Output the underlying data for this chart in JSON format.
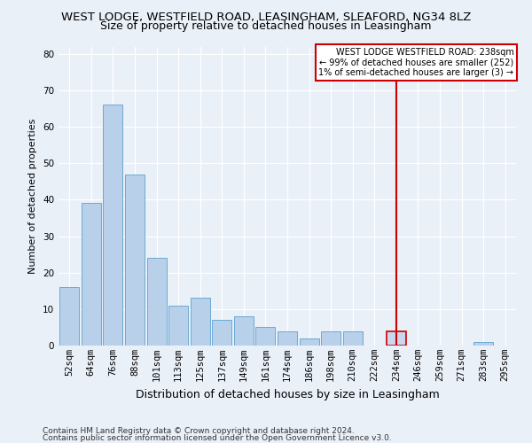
{
  "title": "WEST LODGE, WESTFIELD ROAD, LEASINGHAM, SLEAFORD, NG34 8LZ",
  "subtitle": "Size of property relative to detached houses in Leasingham",
  "xlabel": "Distribution of detached houses by size in Leasingham",
  "ylabel": "Number of detached properties",
  "categories": [
    "52sqm",
    "64sqm",
    "76sqm",
    "88sqm",
    "101sqm",
    "113sqm",
    "125sqm",
    "137sqm",
    "149sqm",
    "161sqm",
    "174sqm",
    "186sqm",
    "198sqm",
    "210sqm",
    "222sqm",
    "234sqm",
    "246sqm",
    "259sqm",
    "271sqm",
    "283sqm",
    "295sqm"
  ],
  "values": [
    16,
    39,
    66,
    47,
    24,
    11,
    13,
    7,
    8,
    5,
    4,
    2,
    4,
    4,
    0,
    4,
    0,
    0,
    0,
    1,
    0
  ],
  "bar_color": "#b8d0ea",
  "bar_edge_color": "#6aaad4",
  "highlight_index": 15,
  "highlight_bar_color": "#c8d8ee",
  "highlight_bar_edge_color": "#cc0000",
  "vline_color": "#cc0000",
  "annotation_line1": "WEST LODGE WESTFIELD ROAD: 238sqm",
  "annotation_line2": "← 99% of detached houses are smaller (252)",
  "annotation_line3": "1% of semi-detached houses are larger (3) →",
  "annotation_box_color": "#ffffff",
  "annotation_box_edge_color": "#cc0000",
  "ylim": [
    0,
    82
  ],
  "yticks": [
    0,
    10,
    20,
    30,
    40,
    50,
    60,
    70,
    80
  ],
  "footer1": "Contains HM Land Registry data © Crown copyright and database right 2024.",
  "footer2": "Contains public sector information licensed under the Open Government Licence v3.0.",
  "bg_color": "#eaf0f8",
  "plot_bg_color": "#eaf0f8",
  "grid_color": "#ffffff",
  "title_fontsize": 9.5,
  "subtitle_fontsize": 9,
  "ylabel_fontsize": 8,
  "xlabel_fontsize": 9,
  "tick_fontsize": 7.5,
  "footer_fontsize": 6.5
}
